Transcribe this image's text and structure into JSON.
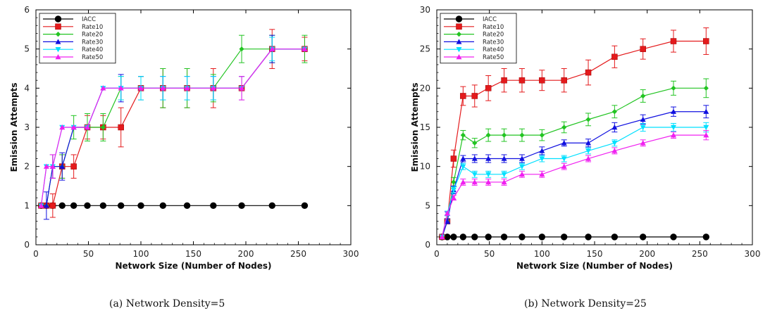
{
  "chart_data": [
    {
      "type": "line",
      "caption": "(a) Network Density=5",
      "xlabel": "Network Size (Number of Nodes)",
      "ylabel": "Emission Attempts",
      "xlim": [
        0,
        300
      ],
      "ylim": [
        0,
        6
      ],
      "xticks": [
        0,
        50,
        100,
        150,
        200,
        250,
        300
      ],
      "yticks": [
        0,
        1,
        2,
        3,
        4,
        5,
        6
      ],
      "grid": false,
      "legend_position": "top-left",
      "x": [
        5,
        10,
        16,
        25,
        36,
        49,
        64,
        81,
        100,
        121,
        144,
        169,
        196,
        225,
        256
      ],
      "series": [
        {
          "name": "IACC",
          "color": "#000000",
          "marker": "circle",
          "values": [
            1,
            1,
            1,
            1,
            1,
            1,
            1,
            1,
            1,
            1,
            1,
            1,
            1,
            1,
            1
          ],
          "errors": [
            0,
            0,
            0,
            0,
            0,
            0,
            0,
            0,
            0,
            0,
            0,
            0,
            0,
            0,
            0
          ]
        },
        {
          "name": "Rate10",
          "color": "#e41a1c",
          "marker": "square",
          "values": [
            1,
            1,
            1,
            2,
            2,
            3,
            3,
            3,
            4,
            4,
            4,
            4,
            4,
            5,
            5
          ],
          "errors": [
            0,
            0,
            0.3,
            0.3,
            0.3,
            0.3,
            0.3,
            0.5,
            0.3,
            0.5,
            0.5,
            0.5,
            0.3,
            0.5,
            0.3
          ]
        },
        {
          "name": "Rate20",
          "color": "#22c422",
          "marker": "diamond",
          "values": [
            1,
            1,
            2,
            2,
            3,
            3,
            3,
            4,
            4,
            4,
            4,
            4,
            5,
            5,
            5
          ],
          "errors": [
            0,
            0,
            0.3,
            0.3,
            0.3,
            0.35,
            0.35,
            0.3,
            0.3,
            0.5,
            0.5,
            0.35,
            0.35,
            0.35,
            0.35
          ]
        },
        {
          "name": "Rate30",
          "color": "#1010e0",
          "marker": "triangle-up",
          "values": [
            1,
            1,
            2,
            2,
            3,
            3,
            4,
            4,
            4,
            4,
            4,
            4,
            4,
            5,
            5
          ],
          "errors": [
            0,
            0.35,
            0.3,
            0.35,
            0,
            0,
            0,
            0.35,
            0.3,
            0.3,
            0.3,
            0.3,
            0.3,
            0.35,
            0
          ]
        },
        {
          "name": "Rate40",
          "color": "#00e0ff",
          "marker": "triangle-down",
          "values": [
            1,
            2,
            2,
            3,
            3,
            3,
            4,
            4,
            4,
            4,
            4,
            4,
            4,
            5,
            5
          ],
          "errors": [
            0,
            0,
            0,
            0,
            0,
            0,
            0,
            0.3,
            0.3,
            0.3,
            0.3,
            0.3,
            0.3,
            0.3,
            0
          ]
        },
        {
          "name": "Rate50",
          "color": "#f020f0",
          "marker": "triangle-up",
          "values": [
            1,
            2,
            2,
            3,
            3,
            3,
            4,
            4,
            4,
            4,
            4,
            4,
            4,
            5,
            5
          ],
          "errors": [
            0,
            0,
            0.3,
            0,
            0,
            0,
            0,
            0,
            0,
            0,
            0,
            0,
            0.3,
            0,
            0
          ]
        }
      ]
    },
    {
      "type": "line",
      "caption": "(b) Network Density=25",
      "xlabel": "Network Size (Number of Nodes)",
      "ylabel": "Emission Attempts",
      "xlim": [
        0,
        300
      ],
      "ylim": [
        0,
        30
      ],
      "xticks": [
        0,
        50,
        100,
        150,
        200,
        250,
        300
      ],
      "yticks": [
        0,
        5,
        10,
        15,
        20,
        25,
        30
      ],
      "grid": false,
      "legend_position": "top-left",
      "x": [
        5,
        10,
        16,
        25,
        36,
        49,
        64,
        81,
        100,
        121,
        144,
        169,
        196,
        225,
        256
      ],
      "series": [
        {
          "name": "IACC",
          "color": "#000000",
          "marker": "circle",
          "values": [
            1,
            1,
            1,
            1,
            1,
            1,
            1,
            1,
            1,
            1,
            1,
            1,
            1,
            1,
            1
          ],
          "errors": [
            0,
            0,
            0,
            0,
            0,
            0,
            0,
            0,
            0,
            0,
            0,
            0,
            0,
            0,
            0
          ]
        },
        {
          "name": "Rate10",
          "color": "#e41a1c",
          "marker": "square",
          "values": [
            1,
            3,
            11,
            19,
            19,
            20,
            21,
            21,
            21,
            21,
            22,
            24,
            25,
            26,
            26
          ],
          "errors": [
            0,
            0.3,
            1.1,
            1.2,
            1.4,
            1.6,
            1.5,
            1.5,
            1.3,
            1.5,
            1.6,
            1.4,
            1.3,
            1.4,
            1.7
          ]
        },
        {
          "name": "Rate20",
          "color": "#22c422",
          "marker": "diamond",
          "values": [
            1,
            3,
            8,
            14,
            13,
            14,
            14,
            14,
            14,
            15,
            16,
            17,
            19,
            20,
            20
          ],
          "errors": [
            0,
            0.3,
            0.6,
            0.6,
            0.6,
            0.8,
            0.8,
            0.8,
            0.7,
            0.7,
            0.8,
            0.8,
            0.8,
            0.9,
            1.2
          ]
        },
        {
          "name": "Rate30",
          "color": "#1010e0",
          "marker": "triangle-up",
          "values": [
            1,
            3,
            7,
            11,
            11,
            11,
            11,
            11,
            12,
            13,
            13,
            15,
            16,
            17,
            17
          ],
          "errors": [
            0,
            0.3,
            0.5,
            0.4,
            0.5,
            0.5,
            0.5,
            0.5,
            0.5,
            0.4,
            0.5,
            0.6,
            0.6,
            0.6,
            0.8
          ]
        },
        {
          "name": "Rate40",
          "color": "#00e0ff",
          "marker": "triangle-down",
          "values": [
            1,
            4,
            7,
            10,
            9,
            9,
            9,
            10,
            11,
            11,
            12,
            13,
            15,
            15,
            15
          ],
          "errors": [
            0,
            0.3,
            0.4,
            0.4,
            0.4,
            0.4,
            0.4,
            0.4,
            0.4,
            0.4,
            0.4,
            0.4,
            0.5,
            0.5,
            0.6
          ]
        },
        {
          "name": "Rate50",
          "color": "#f020f0",
          "marker": "triangle-up",
          "values": [
            1,
            4,
            6,
            8,
            8,
            8,
            8,
            9,
            9,
            10,
            11,
            12,
            13,
            14,
            14
          ],
          "errors": [
            0,
            0.2,
            0.3,
            0.4,
            0.4,
            0.4,
            0.4,
            0.4,
            0.4,
            0.4,
            0.4,
            0.4,
            0.4,
            0.4,
            0.6
          ]
        }
      ]
    }
  ]
}
